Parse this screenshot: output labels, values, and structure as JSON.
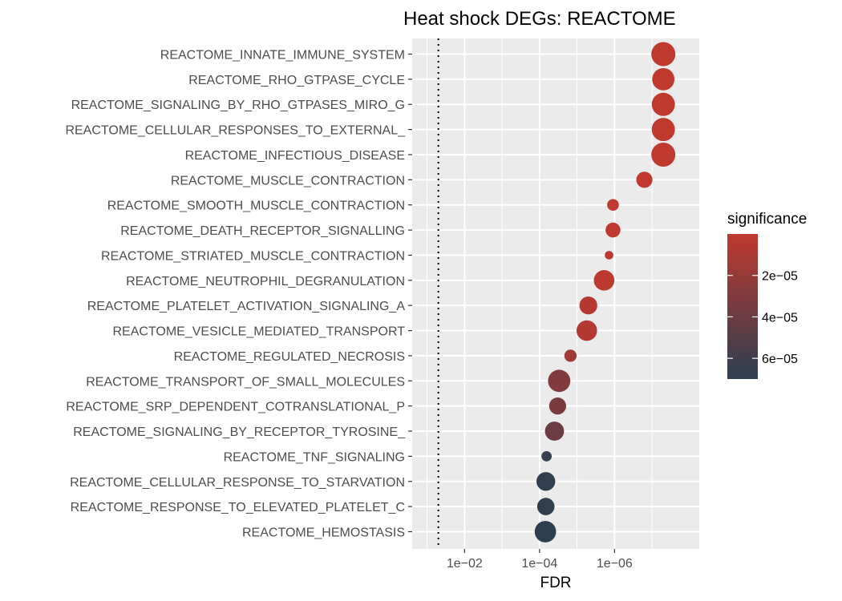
{
  "chart_data": {
    "type": "scatter",
    "title": "Heat shock DEGs: REACTOME",
    "xlabel": "FDR",
    "x_scale": "reverse-log10",
    "xlim": [
      0.25,
      5.5e-09
    ],
    "x_ticks": [
      {
        "value": 0.01,
        "label": "1e−02"
      },
      {
        "value": 0.0001,
        "label": "1e−04"
      },
      {
        "value": 1e-06,
        "label": "1e−06"
      }
    ],
    "reference_line": {
      "value": 0.05,
      "style": "dotted"
    },
    "grid": true,
    "categories": [
      "REACTOME_INNATE_IMMUNE_SYSTEM",
      "REACTOME_RHO_GTPASE_CYCLE",
      "REACTOME_SIGNALING_BY_RHO_GTPASES_MIRO_G",
      "REACTOME_CELLULAR_RESPONSES_TO_EXTERNAL_",
      "REACTOME_INFECTIOUS_DISEASE",
      "REACTOME_MUSCLE_CONTRACTION",
      "REACTOME_SMOOTH_MUSCLE_CONTRACTION",
      "REACTOME_DEATH_RECEPTOR_SIGNALLING",
      "REACTOME_STRIATED_MUSCLE_CONTRACTION",
      "REACTOME_NEUTROPHIL_DEGRANULATION",
      "REACTOME_PLATELET_ACTIVATION_SIGNALING_A",
      "REACTOME_VESICLE_MEDIATED_TRANSPORT",
      "REACTOME_REGULATED_NECROSIS",
      "REACTOME_TRANSPORT_OF_SMALL_MOLECULES",
      "REACTOME_SRP_DEPENDENT_COTRANSLATIONAL_P",
      "REACTOME_SIGNALING_BY_RECEPTOR_TYROSINE_",
      "REACTOME_TNF_SIGNALING",
      "REACTOME_CELLULAR_RESPONSE_TO_STARVATION",
      "REACTOME_RESPONSE_TO_ELEVATED_PLATELET_C",
      "REACTOME_HEMOSTASIS"
    ],
    "fdr": [
      5e-08,
      5e-08,
      5e-08,
      5e-08,
      5e-08,
      1.6e-07,
      1.1e-06,
      1.1e-06,
      1.4e-06,
      1.9e-06,
      5e-06,
      5.5e-06,
      1.5e-05,
      3e-05,
      3.3e-05,
      4e-05,
      6.5e-05,
      6.8e-05,
      6.8e-05,
      7e-05
    ],
    "significance": [
      5e-08,
      5e-08,
      5e-08,
      5e-08,
      5e-08,
      1.6e-07,
      1.1e-06,
      1.1e-06,
      1.4e-06,
      1.9e-06,
      5e-06,
      5.5e-06,
      1.5e-05,
      3e-05,
      3.3e-05,
      4e-05,
      6.5e-05,
      6.8e-05,
      6.8e-05,
      7e-05
    ],
    "size": [
      1.0,
      0.9,
      0.95,
      0.95,
      1.0,
      0.55,
      0.3,
      0.48,
      0.12,
      0.8,
      0.65,
      0.8,
      0.33,
      0.9,
      0.6,
      0.72,
      0.22,
      0.7,
      0.62,
      0.85
    ],
    "color_scale": {
      "name": "significance",
      "domain": [
        5e-10,
        7e-05
      ],
      "low_color": "#c0392f",
      "high_color": "#2c3e50",
      "ticks": [
        {
          "value": 2e-05,
          "label": "2e−05"
        },
        {
          "value": 4e-05,
          "label": "4e−05"
        },
        {
          "value": 6e-05,
          "label": "6e−05"
        }
      ]
    },
    "panel_background": "#ebebeb",
    "grid_color": "#ffffff",
    "legend_position": "right"
  }
}
